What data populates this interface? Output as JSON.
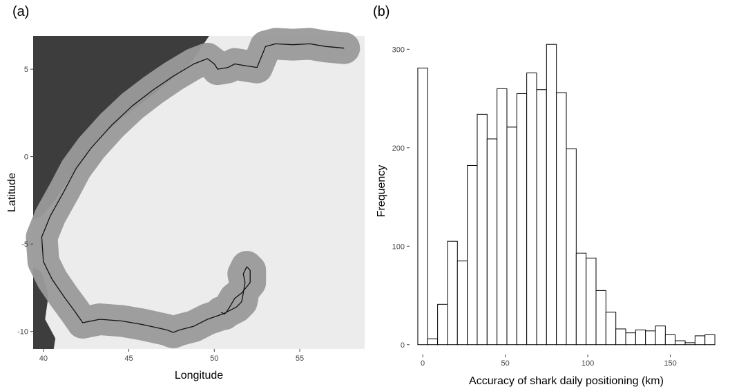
{
  "chart_data": [
    {
      "panel": "(a)",
      "type": "scatter",
      "xlabel": "Longitude",
      "ylabel": "Latitude",
      "xlim": [
        39.4,
        58.8
      ],
      "ylim": [
        -11.0,
        6.9
      ],
      "xticks": [
        40,
        45,
        50,
        55
      ],
      "yticks": [
        5,
        0,
        -5,
        -10
      ],
      "grid": false,
      "colors": {
        "background": "#ececec",
        "land": "#3d3d3d",
        "buffer": "#9a9a9a",
        "track": "#111111"
      },
      "land_outline": [
        [
          39.4,
          6.9
        ],
        [
          49.7,
          6.9
        ],
        [
          48.6,
          5.3
        ],
        [
          46.5,
          3.6
        ],
        [
          44.6,
          2.2
        ],
        [
          42.9,
          0.7
        ],
        [
          41.7,
          -1.0
        ],
        [
          40.6,
          -2.6
        ],
        [
          39.9,
          -3.4
        ],
        [
          39.4,
          -3.6
        ]
      ],
      "land_outline_2": [
        [
          39.4,
          -6.3
        ],
        [
          39.9,
          -6.6
        ],
        [
          40.3,
          -7.9
        ],
        [
          40.1,
          -9.3
        ],
        [
          40.7,
          -10.4
        ],
        [
          40.6,
          -11.0
        ],
        [
          39.4,
          -11.0
        ]
      ],
      "track": [
        [
          57.6,
          6.2
        ],
        [
          56.5,
          6.3
        ],
        [
          55.6,
          6.45
        ],
        [
          54.6,
          6.4
        ],
        [
          53.6,
          6.45
        ],
        [
          53.0,
          6.3
        ],
        [
          52.8,
          5.8
        ],
        [
          52.5,
          5.1
        ],
        [
          51.8,
          5.2
        ],
        [
          51.2,
          5.3
        ],
        [
          50.8,
          5.1
        ],
        [
          50.2,
          5.0
        ],
        [
          50.0,
          5.3
        ],
        [
          49.6,
          5.6
        ],
        [
          48.8,
          5.3
        ],
        [
          47.6,
          4.6
        ],
        [
          46.4,
          3.8
        ],
        [
          45.2,
          2.9
        ],
        [
          44.0,
          1.8
        ],
        [
          42.8,
          0.5
        ],
        [
          41.9,
          -0.7
        ],
        [
          41.2,
          -2.0
        ],
        [
          40.4,
          -3.4
        ],
        [
          39.9,
          -4.6
        ],
        [
          40.0,
          -6.0
        ],
        [
          40.5,
          -7.0
        ],
        [
          41.2,
          -8.0
        ],
        [
          41.8,
          -8.8
        ],
        [
          42.3,
          -9.5
        ],
        [
          43.3,
          -9.3
        ],
        [
          44.6,
          -9.4
        ],
        [
          45.8,
          -9.6
        ],
        [
          47.2,
          -9.9
        ],
        [
          47.6,
          -10.05
        ],
        [
          48.0,
          -9.9
        ],
        [
          48.8,
          -9.7
        ],
        [
          49.6,
          -9.3
        ],
        [
          50.5,
          -9.0
        ],
        [
          51.3,
          -8.6
        ],
        [
          51.6,
          -8.3
        ],
        [
          51.7,
          -7.8
        ],
        [
          51.8,
          -7.2
        ],
        [
          51.7,
          -6.7
        ],
        [
          51.9,
          -6.3
        ],
        [
          52.1,
          -6.5
        ],
        [
          52.1,
          -7.2
        ],
        [
          51.6,
          -7.8
        ],
        [
          51.2,
          -8.1
        ],
        [
          50.9,
          -8.6
        ],
        [
          50.7,
          -8.9
        ],
        [
          50.6,
          -9.0
        ],
        [
          50.4,
          -8.9
        ]
      ]
    },
    {
      "panel": "(b)",
      "type": "bar",
      "xlabel": "Accuracy of shark daily positioning (km)",
      "ylabel": "Frequency",
      "xlim": [
        -8,
        182
      ],
      "ylim": [
        -10,
        322
      ],
      "xticks": [
        0,
        50,
        100,
        150
      ],
      "yticks": [
        0,
        100,
        200,
        300
      ],
      "bin_width": 6,
      "bin_start": -3,
      "values": [
        281,
        6,
        41,
        105,
        85,
        182,
        234,
        209,
        260,
        221,
        255,
        276,
        259,
        305,
        256,
        199,
        93,
        88,
        55,
        33,
        16,
        12,
        15,
        14,
        19,
        10,
        4,
        2,
        9,
        10
      ],
      "grid": false
    }
  ],
  "labels": {
    "panel_a": "(a)",
    "panel_b": "(b)"
  }
}
